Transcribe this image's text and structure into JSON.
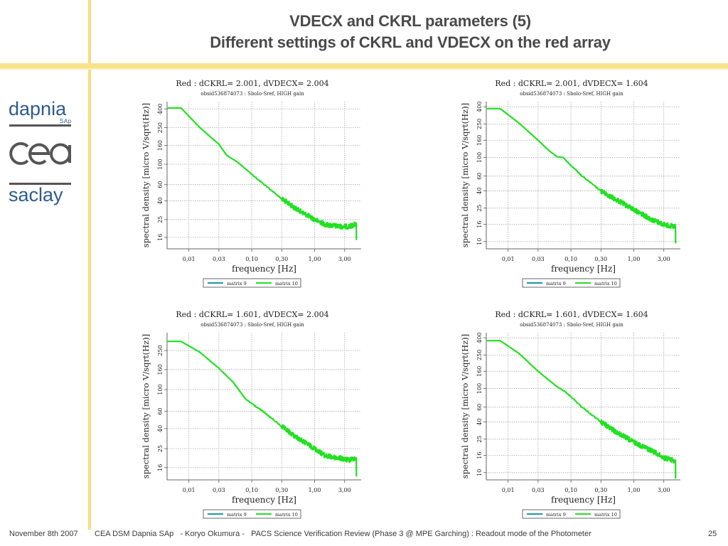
{
  "slide": {
    "title_line1": "VDECX and CKRL parameters (5)",
    "title_line2": "Different settings of CKRL and VDECX on the red array",
    "logos": {
      "dapnia": "dapnia",
      "dapnia_sub": "SAp",
      "cea": "cea",
      "saclay": "saclay"
    },
    "footer": {
      "date": "November 8th 2007",
      "text": "CEA DSM Dapnia SAp   - Koryo Okumura -   PACS Science Verification Review (Phase 3 @ MPE Garching) : Readout mode of the Photometer",
      "page": "25"
    },
    "accent_color": "#f5dd7a"
  },
  "chart_data": [
    {
      "type": "line",
      "title": "Red : dCKRL= 2.001, dVDECX= 2.004",
      "subtitle": "obsid536874073 : Sbolo-Sref, HIGH gain",
      "xlabel": "frequency [Hz]",
      "ylabel": "spectral density [micro V/sqrt(Hz)]",
      "xscale": "log",
      "yscale": "log",
      "xticks": [
        0.01,
        0.03,
        0.1,
        0.3,
        1.0,
        3.0
      ],
      "xtick_labels": [
        "0,01",
        "0,03",
        "0,10",
        "0,30",
        "1,00",
        "3,00"
      ],
      "yticks": [
        16,
        25,
        40,
        60,
        100,
        160,
        250,
        400
      ],
      "yrange": [
        12,
        480
      ],
      "xrange": [
        0.0045,
        5.5
      ],
      "grid": true,
      "legend": {
        "position": "bottom",
        "entries": [
          {
            "name": "matrix 9",
            "color": "#1a9aa0"
          },
          {
            "name": "matrix 10",
            "color": "#22e022"
          }
        ]
      },
      "series": [
        {
          "name": "matrix 10",
          "x": [
            0.0046,
            0.0075,
            0.015,
            0.03,
            0.04,
            0.06,
            0.1,
            0.15,
            0.3,
            0.5,
            1.0,
            1.5,
            2.5,
            3.5,
            4.3,
            4.6,
            4.62
          ],
          "y": [
            410,
            410,
            250,
            165,
            125,
            105,
            78,
            62,
            42,
            33,
            25,
            22,
            21,
            21,
            22,
            22,
            15
          ],
          "noise_from": 0.25
        }
      ]
    },
    {
      "type": "line",
      "title": "Red : dCKRL= 2.001, dVDECX= 1.604",
      "subtitle": "obsid536874073 : Sbolo-Sref, HIGH gain",
      "xlabel": "frequency [Hz]",
      "ylabel": "spectral density [micro V/sqrt(Hz)]",
      "xscale": "log",
      "yscale": "log",
      "xticks": [
        0.01,
        0.03,
        0.1,
        0.3,
        1.0,
        3.0
      ],
      "xtick_labels": [
        "0,01",
        "0,03",
        "0,10",
        "0,30",
        "1,00",
        "3,00"
      ],
      "yticks": [
        10,
        16,
        25,
        40,
        60,
        100,
        160,
        250,
        400
      ],
      "yrange": [
        8.2,
        460
      ],
      "xrange": [
        0.0045,
        5.5
      ],
      "grid": true,
      "legend": {
        "position": "bottom",
        "entries": [
          {
            "name": "matrix 9",
            "color": "#1a9aa0"
          },
          {
            "name": "matrix 10",
            "color": "#22e022"
          }
        ]
      },
      "series": [
        {
          "name": "matrix 10",
          "x": [
            0.0046,
            0.0075,
            0.015,
            0.03,
            0.045,
            0.06,
            0.075,
            0.1,
            0.15,
            0.3,
            0.5,
            1.0,
            2.0,
            3.0,
            4.3,
            4.6,
            4.62
          ],
          "y": [
            380,
            380,
            255,
            160,
            120,
            102,
            100,
            80,
            60,
            40,
            32,
            24,
            18,
            16,
            15,
            15,
            9.5
          ],
          "noise_from": 0.25
        }
      ]
    },
    {
      "type": "line",
      "title": "Red : dCKRL= 1.601, dVDECX= 2.004",
      "subtitle": "obsid536874073 : Sbolo-Sref, HIGH gain",
      "xlabel": "frequency [Hz]",
      "ylabel": "spectral density [micro V/sqrt(Hz)]",
      "xscale": "log",
      "yscale": "log",
      "xticks": [
        0.01,
        0.03,
        0.1,
        0.3,
        1.0,
        3.0
      ],
      "xtick_labels": [
        "0,01",
        "0,03",
        "0,10",
        "0,30",
        "1,00",
        "3,00"
      ],
      "yticks": [
        16,
        25,
        40,
        60,
        100,
        160,
        250
      ],
      "yrange": [
        12,
        380
      ],
      "xrange": [
        0.0045,
        5.5
      ],
      "grid": true,
      "legend": {
        "position": "bottom",
        "entries": [
          {
            "name": "matrix 9",
            "color": "#1a9aa0"
          },
          {
            "name": "matrix 10",
            "color": "#22e022"
          }
        ]
      },
      "series": [
        {
          "name": "matrix 10",
          "x": [
            0.0046,
            0.0075,
            0.015,
            0.03,
            0.05,
            0.08,
            0.1,
            0.15,
            0.3,
            0.5,
            1.0,
            1.5,
            2.5,
            3.5,
            4.3,
            4.6,
            4.62
          ],
          "y": [
            310,
            310,
            240,
            165,
            120,
            80,
            72,
            60,
            42,
            33,
            25,
            21,
            20,
            19,
            20,
            20,
            13
          ],
          "noise_from": 0.25
        }
      ]
    },
    {
      "type": "line",
      "title": "Red : dCKRL= 1.601, dVDECX= 1.604",
      "subtitle": "obsid536874073 : Sbolo-Sref, HIGH gain",
      "xlabel": "frequency [Hz]",
      "ylabel": "spectral density [micro V/sqrt(Hz)]",
      "xscale": "log",
      "yscale": "log",
      "xticks": [
        0.01,
        0.03,
        0.1,
        0.3,
        1.0,
        3.0
      ],
      "xtick_labels": [
        "0,01",
        "0,03",
        "0,10",
        "0,30",
        "1,00",
        "3,00"
      ],
      "yticks": [
        10,
        16,
        25,
        40,
        60,
        100,
        160,
        250,
        400
      ],
      "yrange": [
        8.2,
        460
      ],
      "xrange": [
        0.0045,
        5.5
      ],
      "grid": true,
      "legend": {
        "position": "bottom",
        "entries": [
          {
            "name": "matrix 9",
            "color": "#1a9aa0"
          },
          {
            "name": "matrix 10",
            "color": "#22e022"
          }
        ]
      },
      "series": [
        {
          "name": "matrix 10",
          "x": [
            0.0046,
            0.0075,
            0.015,
            0.03,
            0.06,
            0.08,
            0.1,
            0.15,
            0.3,
            0.5,
            1.0,
            2.0,
            3.0,
            4.3,
            4.6,
            4.62
          ],
          "y": [
            370,
            370,
            260,
            160,
            105,
            92,
            80,
            60,
            40,
            31,
            23,
            18,
            15,
            14,
            14,
            8.5
          ],
          "noise_from": 0.25
        }
      ]
    }
  ]
}
